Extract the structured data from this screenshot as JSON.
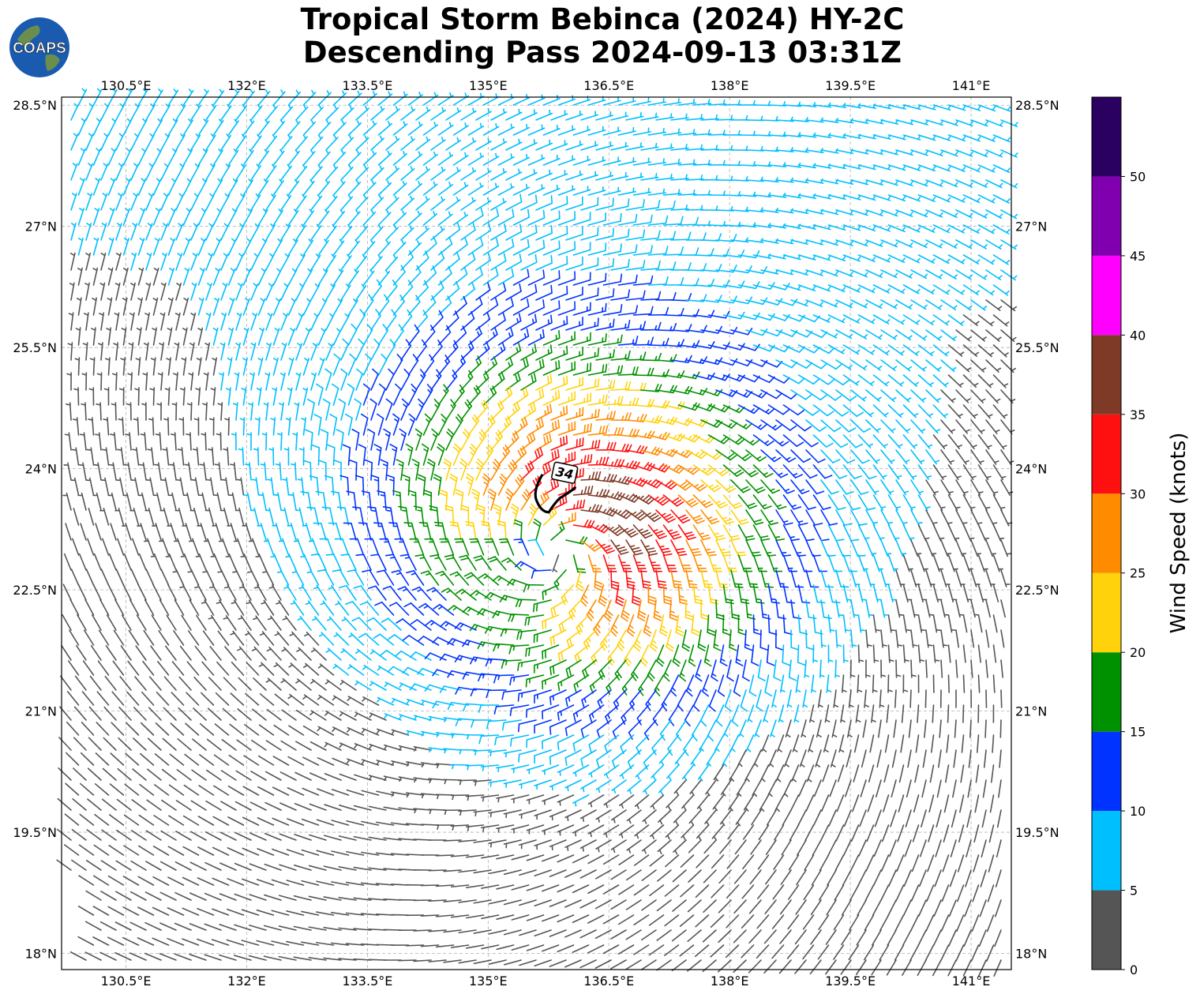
{
  "title": {
    "line1": "Tropical Storm Bebinca (2024) HY-2C",
    "line2": "Descending Pass 2024-09-13 03:31Z"
  },
  "logo": {
    "text": "COAPS",
    "icon": "globe-logo-icon",
    "ocean_color": "#1a5bb0",
    "land_color": "#6b8e4e"
  },
  "map": {
    "lon_range": [
      129.7,
      141.5
    ],
    "lat_range": [
      17.8,
      28.6
    ],
    "lon_ticks": [
      {
        "value": 130.5,
        "label": "130.5°E"
      },
      {
        "value": 132.0,
        "label": "132°E"
      },
      {
        "value": 133.5,
        "label": "133.5°E"
      },
      {
        "value": 135.0,
        "label": "135°E"
      },
      {
        "value": 136.5,
        "label": "136.5°E"
      },
      {
        "value": 138.0,
        "label": "138°E"
      },
      {
        "value": 139.5,
        "label": "139.5°E"
      },
      {
        "value": 141.0,
        "label": "141°E"
      }
    ],
    "lat_ticks": [
      {
        "value": 28.5,
        "label": "28.5°N"
      },
      {
        "value": 27.0,
        "label": "27°N"
      },
      {
        "value": 25.5,
        "label": "25.5°N"
      },
      {
        "value": 24.0,
        "label": "24°N"
      },
      {
        "value": 22.5,
        "label": "22.5°N"
      },
      {
        "value": 21.0,
        "label": "21°N"
      },
      {
        "value": 19.5,
        "label": "19.5°N"
      },
      {
        "value": 18.0,
        "label": "18°N"
      }
    ],
    "gridlines": true,
    "storm_center": {
      "lon": 135.85,
      "lat": 22.95
    },
    "contour": {
      "label": "34",
      "lon": 135.95,
      "lat": 23.95
    }
  },
  "colorbar": {
    "label": "Wind Speed (knots)",
    "ticks": [
      "0",
      "5",
      "10",
      "15",
      "20",
      "25",
      "30",
      "35",
      "40",
      "45",
      "50"
    ],
    "bins": [
      {
        "min": 0,
        "max": 5,
        "color": "#555555"
      },
      {
        "min": 5,
        "max": 10,
        "color": "#00bfff"
      },
      {
        "min": 10,
        "max": 15,
        "color": "#0033ff"
      },
      {
        "min": 15,
        "max": 20,
        "color": "#009100"
      },
      {
        "min": 20,
        "max": 25,
        "color": "#ffd20c"
      },
      {
        "min": 25,
        "max": 30,
        "color": "#ff8c00"
      },
      {
        "min": 30,
        "max": 35,
        "color": "#ff1010"
      },
      {
        "min": 35,
        "max": 40,
        "color": "#7f3a27"
      },
      {
        "min": 40,
        "max": 45,
        "color": "#ff00ff"
      },
      {
        "min": 45,
        "max": 50,
        "color": "#8000b0"
      },
      {
        "min": 50,
        "max": 55,
        "color": "#2a0060"
      }
    ]
  }
}
